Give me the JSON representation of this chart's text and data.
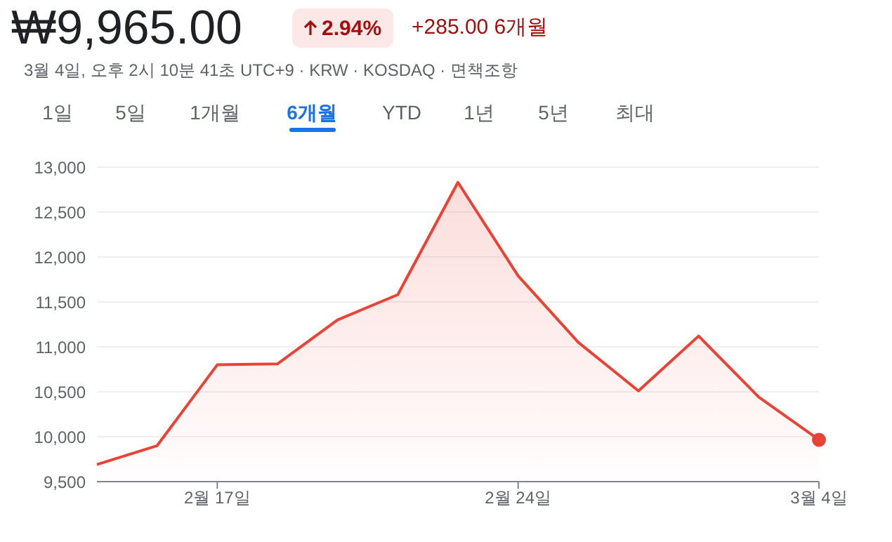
{
  "chart_data": {
    "type": "area",
    "title": "₩9,965.00",
    "subtitle": "3월 4일, 오후 2시 10분 41초 UTC+9 · KRW · KOSDAQ · 면책조항",
    "annotations": [
      "2.94%",
      "+285.00 6개월",
      "1일",
      "5일",
      "1개월",
      "6개월",
      "YTD",
      "1년",
      "5년",
      "최대"
    ],
    "categories": [
      null,
      null,
      "2월 17일",
      null,
      null,
      null,
      null,
      "2월 24일",
      null,
      null,
      null,
      null,
      "3월 4일"
    ],
    "series": [
      {
        "color": "#ea4335",
        "values": [
          9690,
          9900,
          10800,
          10810,
          11300,
          11580,
          12830,
          11790,
          11050,
          10510,
          11120,
          10440,
          9965
        ]
      }
    ],
    "ylim": [
      9500,
      13000
    ],
    "yticks": [
      {
        "value": 9500,
        "label": "9,500"
      },
      {
        "value": 10000,
        "label": "10,000"
      },
      {
        "value": 10500,
        "label": "10,500"
      },
      {
        "value": 11000,
        "label": "11,000"
      },
      {
        "value": 11500,
        "label": "11,500"
      },
      {
        "value": 12000,
        "label": "12,000"
      },
      {
        "value": 12500,
        "label": "12,500"
      },
      {
        "value": 13000,
        "label": "13,000"
      }
    ],
    "grid": "y"
  }
}
